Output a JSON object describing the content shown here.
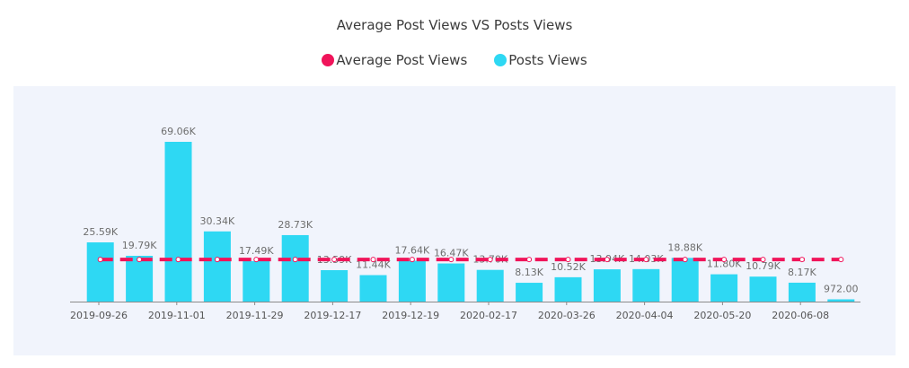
{
  "chart_data": {
    "type": "bar",
    "title": "Average Post Views VS Posts Views",
    "series": [
      {
        "name": "Posts Views",
        "color": "#2ed8f3",
        "values": [
          25590,
          19790,
          69060,
          30340,
          17490,
          28730,
          13590,
          11440,
          17640,
          16470,
          13700,
          8130,
          10520,
          13940,
          14030,
          18880,
          11800,
          10790,
          8170,
          972
        ],
        "labels": [
          "25.59K",
          "19.79K",
          "69.06K",
          "30.34K",
          "17.49K",
          "28.73K",
          "13.59K",
          "11.44K",
          "17.64K",
          "16.47K",
          "13.70K",
          "8.13K",
          "10.52K",
          "13.94K",
          "14.03K",
          "18.88K",
          "11.80K",
          "10.79K",
          "8.17K",
          "972.00"
        ]
      },
      {
        "name": "Average Post Views",
        "color": "#f0145a",
        "type": "line",
        "style": "dashed",
        "values": [
          18200,
          18200,
          18200,
          18200,
          18200,
          18200,
          18200,
          18200,
          18200,
          18200,
          18200,
          18200,
          18200,
          18200,
          18200,
          18200,
          18200,
          18200,
          18200,
          18200
        ]
      }
    ],
    "x_tick_labels": [
      "2019-09-26",
      "2019-11-01",
      "2019-11-29",
      "2019-12-17",
      "2019-12-19",
      "2020-02-17",
      "2020-03-26",
      "2020-04-04",
      "2020-05-20",
      "2020-06-08"
    ],
    "ylim": [
      0,
      70000
    ],
    "grid": false,
    "legend_position": "top"
  }
}
